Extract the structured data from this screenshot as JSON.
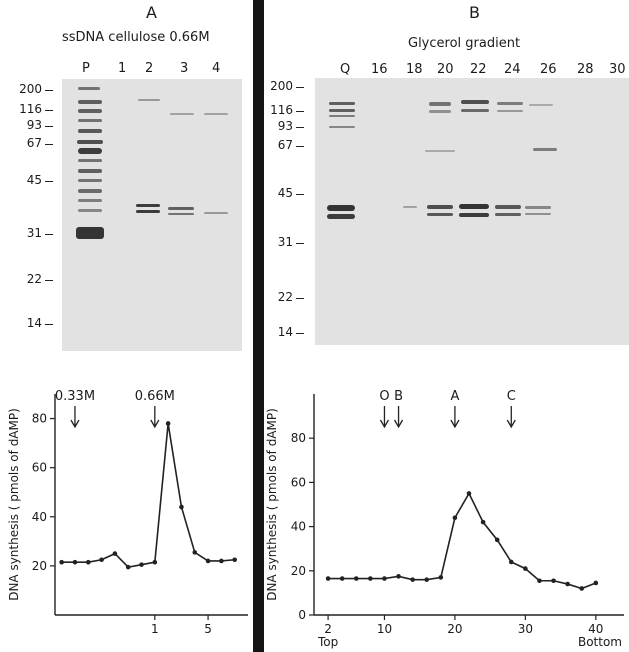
{
  "panelA": {
    "letter": "A",
    "title": "ssDNA cellulose 0.66M",
    "lanes": [
      "P",
      "1",
      "2",
      "3",
      "4"
    ],
    "mw_markers": [
      "200",
      "116",
      "93",
      "67",
      "45",
      "31",
      "22",
      "14"
    ]
  },
  "panelB": {
    "letter": "B",
    "title": "Glycerol gradient",
    "lanes": [
      "Q",
      "16",
      "18",
      "20",
      "22",
      "24",
      "26",
      "28",
      "30"
    ],
    "mw_markers": [
      "200",
      "116",
      "93",
      "67",
      "45",
      "31",
      "22",
      "14"
    ]
  },
  "chart_data": [
    {
      "type": "line",
      "ylabel": "DNA synthesis ( pmols of dAMP)",
      "ylim": [
        0,
        90
      ],
      "yticks": [
        "20",
        "40",
        "60",
        "80"
      ],
      "xticks": [
        {
          "x": 1,
          "label": "1"
        },
        {
          "x": 5,
          "label": "5"
        }
      ],
      "xlim": [
        -6.5,
        8
      ],
      "annotations": [
        {
          "label": "0.33M",
          "x": -5
        },
        {
          "label": "0.66M",
          "x": 1
        }
      ],
      "series": [
        {
          "x": [
            -6,
            -5,
            -4,
            -3,
            -2,
            -1,
            0,
            1,
            2,
            3,
            4,
            5,
            6,
            7
          ],
          "values": [
            21.5,
            21.5,
            21.5,
            22.5,
            25,
            19.5,
            20.5,
            21.5,
            78,
            44,
            25.5,
            22,
            22,
            22.5
          ]
        }
      ]
    },
    {
      "type": "line",
      "ylabel": "DNA synthesis ( pmols of dAMP)",
      "ylim": [
        0,
        100
      ],
      "yticks": [
        "0",
        "20",
        "40",
        "60",
        "80"
      ],
      "xticks": [
        {
          "x": 2,
          "label": "2"
        },
        {
          "x": 10,
          "label": "10"
        },
        {
          "x": 20,
          "label": "20"
        },
        {
          "x": 30,
          "label": "30"
        },
        {
          "x": 40,
          "label": "40"
        }
      ],
      "xlim": [
        0,
        44
      ],
      "xlabel_left": "Top",
      "xlabel_right": "Bottom",
      "annotations": [
        {
          "label": "O",
          "x": 10
        },
        {
          "label": "B",
          "x": 12
        },
        {
          "label": "A",
          "x": 20
        },
        {
          "label": "C",
          "x": 28
        }
      ],
      "series": [
        {
          "x": [
            2,
            4,
            6,
            8,
            10,
            12,
            14,
            16,
            18,
            20,
            22,
            24,
            26,
            28,
            30,
            32,
            34,
            36,
            38,
            40
          ],
          "values": [
            16.5,
            16.5,
            16.5,
            16.5,
            16.5,
            17.5,
            16,
            16,
            17,
            44,
            55,
            42,
            34,
            24,
            21,
            15.5,
            15.5,
            14,
            12,
            14.5
          ]
        }
      ]
    }
  ]
}
